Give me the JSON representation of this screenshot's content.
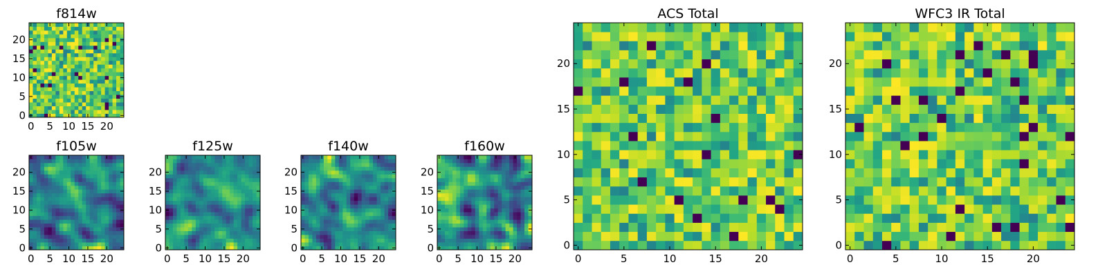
{
  "chart_data": [
    {
      "type": "heatmap",
      "title": "f814w",
      "grid_size": [
        25,
        25
      ],
      "xlim": [
        -0.5,
        24.5
      ],
      "ylim": [
        -0.5,
        24.5
      ],
      "xticks": [
        0,
        5,
        10,
        15,
        20
      ],
      "yticks": [
        0,
        5,
        10,
        15,
        20
      ],
      "colormap": "viridis",
      "origin": "lower",
      "seed": 814,
      "texture": "noise"
    },
    {
      "type": "heatmap",
      "title": "f105w",
      "grid_size": [
        25,
        25
      ],
      "xlim": [
        -0.5,
        24.5
      ],
      "ylim": [
        -0.5,
        24.5
      ],
      "xticks": [
        0,
        5,
        10,
        15,
        20
      ],
      "yticks": [
        0,
        5,
        10,
        15,
        20
      ],
      "colormap": "viridis",
      "origin": "lower",
      "seed": 105,
      "texture": "smooth"
    },
    {
      "type": "heatmap",
      "title": "f125w",
      "grid_size": [
        25,
        25
      ],
      "xlim": [
        -0.5,
        24.5
      ],
      "ylim": [
        -0.5,
        24.5
      ],
      "xticks": [
        0,
        5,
        10,
        15,
        20
      ],
      "yticks": [
        0,
        5,
        10,
        15,
        20
      ],
      "colormap": "viridis",
      "origin": "lower",
      "seed": 125,
      "texture": "smooth"
    },
    {
      "type": "heatmap",
      "title": "f140w",
      "grid_size": [
        25,
        25
      ],
      "xlim": [
        -0.5,
        24.5
      ],
      "ylim": [
        -0.5,
        24.5
      ],
      "xticks": [
        0,
        5,
        10,
        15,
        20
      ],
      "yticks": [
        0,
        5,
        10,
        15,
        20
      ],
      "colormap": "viridis",
      "origin": "lower",
      "seed": 140,
      "texture": "smooth"
    },
    {
      "type": "heatmap",
      "title": "f160w",
      "grid_size": [
        25,
        25
      ],
      "xlim": [
        -0.5,
        24.5
      ],
      "ylim": [
        -0.5,
        24.5
      ],
      "xticks": [
        0,
        5,
        10,
        15,
        20
      ],
      "yticks": [
        0,
        5,
        10,
        15,
        20
      ],
      "colormap": "viridis",
      "origin": "lower",
      "seed": 160,
      "texture": "smooth"
    },
    {
      "type": "heatmap",
      "title": "ACS Total",
      "grid_size": [
        25,
        25
      ],
      "xlim": [
        -0.5,
        24.5
      ],
      "ylim": [
        -0.5,
        24.5
      ],
      "xticks": [
        0,
        5,
        10,
        15,
        20
      ],
      "yticks": [
        0,
        5,
        10,
        15,
        20
      ],
      "colormap": "viridis",
      "origin": "lower",
      "seed": 2001,
      "texture": "noise"
    },
    {
      "type": "heatmap",
      "title": "WFC3 IR Total",
      "grid_size": [
        25,
        25
      ],
      "xlim": [
        -0.5,
        24.5
      ],
      "ylim": [
        -0.5,
        24.5
      ],
      "xticks": [
        0,
        5,
        10,
        15,
        20
      ],
      "yticks": [
        0,
        5,
        10,
        15,
        20
      ],
      "colormap": "viridis",
      "origin": "lower",
      "seed": 3001,
      "texture": "noise"
    }
  ]
}
